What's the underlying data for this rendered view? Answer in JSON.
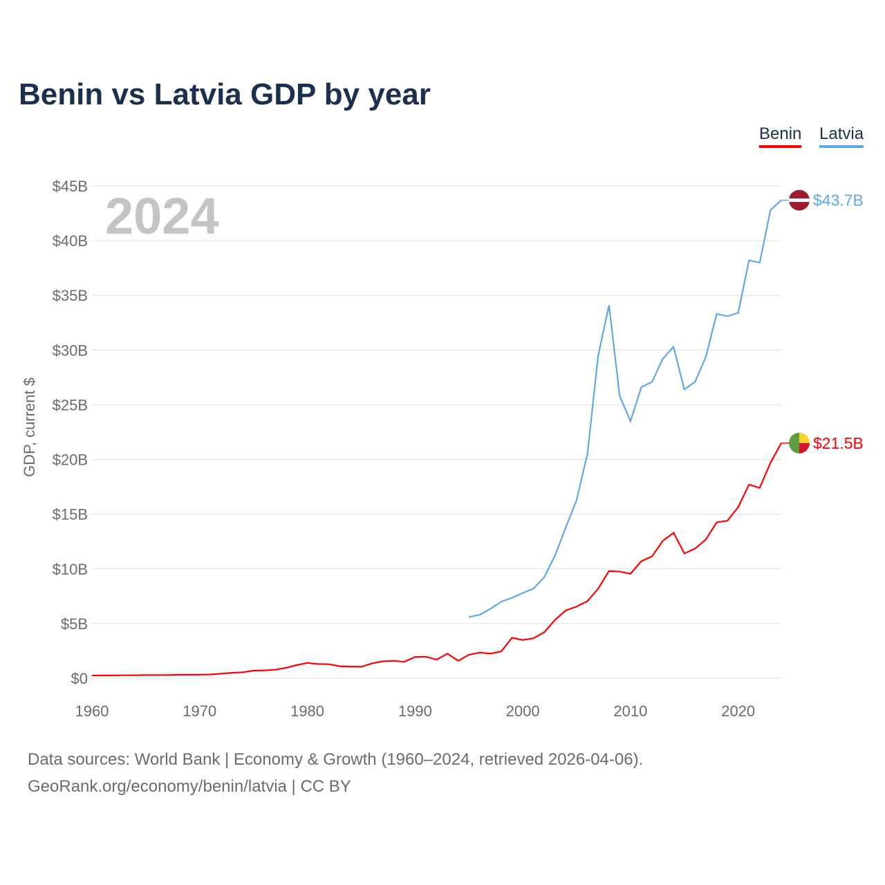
{
  "chart_data": {
    "type": "line",
    "title": "Benin vs Latvia GDP by year",
    "ylabel": "GDP, current $",
    "xlabel": "",
    "year_watermark": "2024",
    "xlim": [
      1960,
      2024
    ],
    "ylim": [
      0,
      45
    ],
    "x_ticks": [
      "1960",
      "1970",
      "1980",
      "1990",
      "2000",
      "2010",
      "2020"
    ],
    "y_ticks": [
      "$0",
      "$5B",
      "$10B",
      "$15B",
      "$20B",
      "$25B",
      "$30B",
      "$35B",
      "$40B",
      "$45B"
    ],
    "grid": true,
    "legend_position": "top-right",
    "series": [
      {
        "name": "Benin",
        "color": "#ff0000",
        "end_label": "$21.5B",
        "start_year": 1960,
        "values": [
          0.25,
          0.26,
          0.26,
          0.27,
          0.28,
          0.29,
          0.3,
          0.3,
          0.32,
          0.32,
          0.33,
          0.35,
          0.42,
          0.5,
          0.55,
          0.7,
          0.72,
          0.78,
          0.95,
          1.2,
          1.4,
          1.3,
          1.28,
          1.1,
          1.07,
          1.05,
          1.35,
          1.55,
          1.6,
          1.5,
          1.95,
          1.97,
          1.7,
          2.25,
          1.6,
          2.15,
          2.35,
          2.25,
          2.45,
          3.7,
          3.5,
          3.65,
          4.2,
          5.35,
          6.2,
          6.55,
          7.05,
          8.2,
          9.8,
          9.75,
          9.55,
          10.7,
          11.15,
          12.55,
          13.3,
          11.4,
          11.85,
          12.7,
          14.25,
          14.4,
          15.65,
          17.7,
          17.4,
          19.7,
          21.5
        ]
      },
      {
        "name": "Latvia",
        "color": "#5ea8ea",
        "end_label": "$43.7B",
        "start_year": 1995,
        "values": [
          5.6,
          5.8,
          6.35,
          7.0,
          7.35,
          7.8,
          8.2,
          9.25,
          11.25,
          13.8,
          16.3,
          20.5,
          29.5,
          34.1,
          25.8,
          23.5,
          26.6,
          27.1,
          29.2,
          30.3,
          26.4,
          27.1,
          29.4,
          33.3,
          33.1,
          33.4,
          38.2,
          38.0,
          42.8,
          43.7
        ]
      }
    ]
  },
  "footer": {
    "line1": "Data sources: World Bank | Economy & Growth (1960–2024, retrieved 2026-04-06).",
    "line2": "GeoRank.org/economy/benin/latvia | CC BY"
  }
}
